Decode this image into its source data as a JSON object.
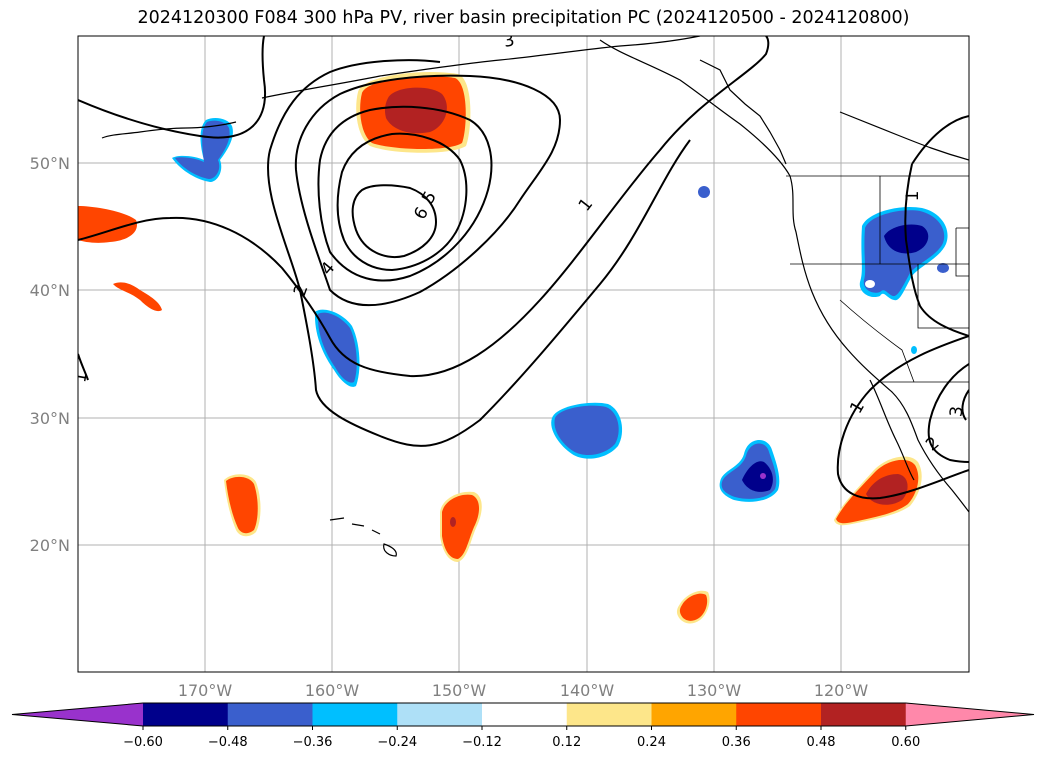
{
  "title": "2024120300 F084 300 hPa PV, river basin precipitation PC (2024120500 - 2024120800)",
  "axes": {
    "lat_labels": [
      "50°N",
      "40°N",
      "30°N",
      "20°N"
    ],
    "lon_labels": [
      "170°W",
      "160°W",
      "150°W",
      "140°W",
      "130°W",
      "120°W"
    ]
  },
  "pv_contour_labels": [
    "1",
    "1",
    "1",
    "1",
    "2",
    "2",
    "3",
    "3",
    "4",
    "5",
    "6"
  ],
  "colorbar": {
    "tick_labels": [
      "−0.60",
      "−0.48",
      "−0.36",
      "−0.24",
      "−0.12",
      "0.12",
      "0.24",
      "0.36",
      "0.48",
      "0.60"
    ],
    "colors": [
      "#9932cc",
      "#00008b",
      "#3a5fcd",
      "#00bfff",
      "#aee0f7",
      "#ffffff",
      "#fde68a",
      "#ffa500",
      "#ff4500",
      "#b22222",
      "#ff88aa"
    ]
  }
}
